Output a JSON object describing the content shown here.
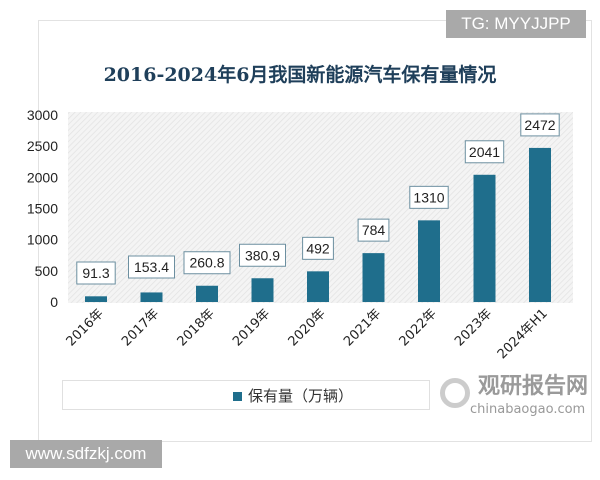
{
  "watermarks": {
    "tg": "TG: MYYJJPP",
    "site": "www.sdfzkj.com",
    "brand_cn": "观研报告网",
    "brand_en": "chinabaogao.com"
  },
  "chart_data": {
    "type": "bar",
    "title": "2016-2024年6月我国新能源汽车保有量情况",
    "categories": [
      "2016年",
      "2017年",
      "2018年",
      "2019年",
      "2020年",
      "2021年",
      "2022年",
      "2023年",
      "2024年H1"
    ],
    "series": [
      {
        "name": "保有量（万辆）",
        "values": [
          91.3,
          153.4,
          260.8,
          380.9,
          492,
          784,
          1310,
          2041,
          2472
        ],
        "labels": [
          "91.3",
          "153.4",
          "260.8",
          "380.9",
          "492",
          "784",
          "1310",
          "2041",
          "2472"
        ]
      }
    ],
    "ylim": [
      0,
      3000
    ],
    "yticks": [
      "0",
      "500",
      "1000",
      "1500",
      "2000",
      "2500",
      "3000"
    ],
    "legend": "bottom-left",
    "color": "#1f6e8c"
  }
}
